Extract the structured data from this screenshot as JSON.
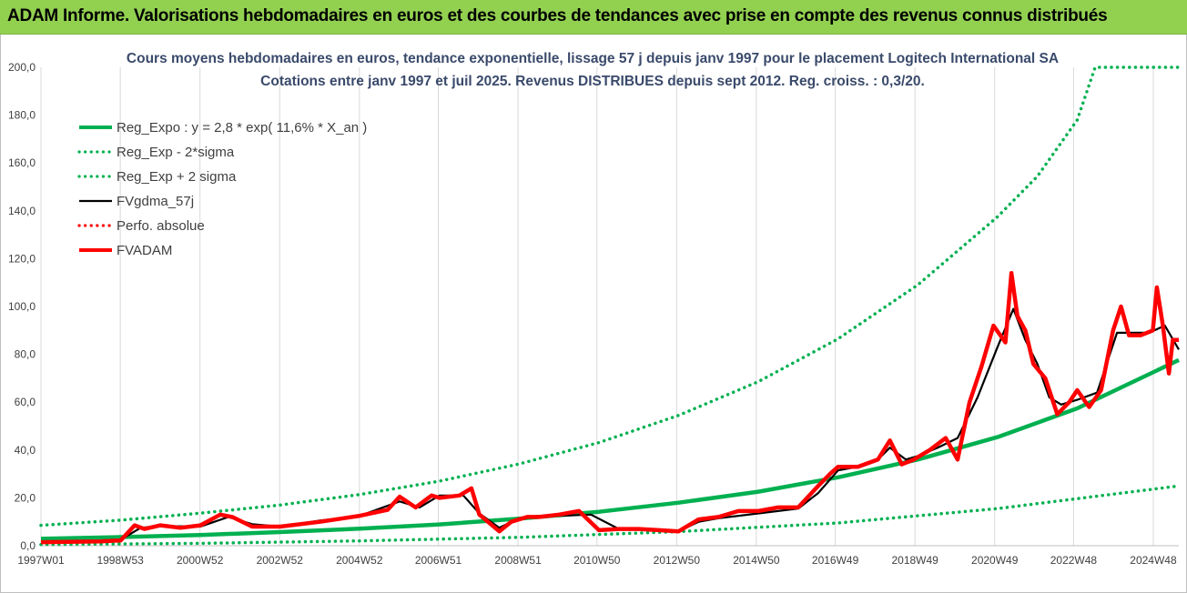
{
  "header": {
    "banner": "ADAM Informe. Valorisations hebdomadaires en euros et des courbes de tendances avec prise en compte des revenus connus distribués"
  },
  "colors": {
    "banner_bg": "#92d050",
    "reg_expo": "#00b050",
    "fvgdma": "#000000",
    "fvadam": "#ff0000",
    "perfo": "#ff0000",
    "title": "#3a4a6b"
  },
  "chart_data": {
    "type": "line",
    "title": "Cours moyens hebdomadaires en euros, tendance exponentielle, lissage 57 j depuis janv 1997  pour le placement Logitech International SA",
    "subtitle": "Cotations entre janv 1997 et juil 2025. Revenus DISTRIBUES depuis sept 2012. Reg. croiss. : 0,3/20.",
    "xlabel": "",
    "ylabel": "",
    "xlim": [
      1997.0,
      2025.55
    ],
    "ylim": [
      0,
      200
    ],
    "yticks": [
      "0,0",
      "20,0",
      "40,0",
      "60,0",
      "80,0",
      "100,0",
      "120,0",
      "140,0",
      "160,0",
      "180,0",
      "200,0"
    ],
    "xticks": [
      {
        "label": "1997W01",
        "x": 1997.0
      },
      {
        "label": "1998W53",
        "x": 1998.99
      },
      {
        "label": "2000W52",
        "x": 2000.99
      },
      {
        "label": "2002W52",
        "x": 2002.99
      },
      {
        "label": "2004W52",
        "x": 2004.99
      },
      {
        "label": "2006W51",
        "x": 2006.97
      },
      {
        "label": "2008W51",
        "x": 2008.97
      },
      {
        "label": "2010W50",
        "x": 2010.95
      },
      {
        "label": "2012W50",
        "x": 2012.95
      },
      {
        "label": "2014W50",
        "x": 2014.95
      },
      {
        "label": "2016W49",
        "x": 2016.93
      },
      {
        "label": "2018W49",
        "x": 2018.93
      },
      {
        "label": "2020W49",
        "x": 2020.93
      },
      {
        "label": "2022W48",
        "x": 2022.91
      },
      {
        "label": "2024W48",
        "x": 2024.91
      }
    ],
    "grid": "vertical",
    "legend_position": "top-left",
    "series": [
      {
        "name": "Reg_Expo : y = 2,8 * exp( 11,6% *  X_an )",
        "style": "thick",
        "color": "#00b050",
        "x": [
          1997.0,
          1999.0,
          2001.0,
          2003.0,
          2005.0,
          2007.0,
          2009.0,
          2011.0,
          2013.0,
          2015.0,
          2017.0,
          2019.0,
          2021.0,
          2023.0,
          2025.55
        ],
        "y": [
          2.9,
          3.6,
          4.5,
          5.7,
          7.1,
          8.9,
          11.3,
          14.2,
          18.0,
          22.6,
          28.6,
          36.0,
          45.4,
          57.4,
          77.6
        ]
      },
      {
        "name": "Reg_Exp - 2*sigma",
        "style": "dotted",
        "color": "#00b050",
        "x": [
          1997.0,
          2001.0,
          2005.0,
          2009.0,
          2013.0,
          2017.0,
          2021.0,
          2025.55
        ],
        "y": [
          0.5,
          1.0,
          2.0,
          3.5,
          5.9,
          9.5,
          15.5,
          25.0
        ]
      },
      {
        "name": "Reg_Exp + 2 sigma",
        "style": "dotted",
        "color": "#00b050",
        "x": [
          1997.0,
          1999.0,
          2001.0,
          2003.0,
          2005.0,
          2007.0,
          2009.0,
          2011.0,
          2013.0,
          2015.0,
          2017.0,
          2019.0,
          2021.0,
          2022.0,
          2023.0,
          2023.45,
          2025.55
        ],
        "y": [
          8.5,
          10.7,
          13.6,
          17.0,
          21.4,
          27.0,
          34.2,
          43.1,
          54.5,
          68.6,
          86.5,
          109.0,
          137.5,
          154.4,
          178.0,
          200.0,
          200.0
        ]
      },
      {
        "name": "FVgdma_57j",
        "style": "solid",
        "color": "#000000",
        "x": [
          1997.0,
          1998.5,
          1999.0,
          1999.5,
          2000.0,
          2001.0,
          2001.7,
          2002.3,
          2003.0,
          2004.0,
          2005.0,
          2006.0,
          2006.5,
          2007.0,
          2007.6,
          2008.0,
          2008.5,
          2009.0,
          2009.5,
          2010.0,
          2010.8,
          2011.5,
          2012.0,
          2012.5,
          2013.0,
          2013.5,
          2014.0,
          2015.0,
          2016.0,
          2016.5,
          2017.0,
          2017.5,
          2018.0,
          2018.3,
          2018.7,
          2019.0,
          2019.5,
          2020.0,
          2020.5,
          2021.0,
          2021.4,
          2021.7,
          2022.0,
          2022.3,
          2022.6,
          2023.0,
          2023.5,
          2024.0,
          2024.5,
          2024.8,
          2025.2,
          2025.55
        ],
        "y": [
          1.5,
          1.8,
          2.5,
          7.5,
          8.2,
          8.0,
          12.0,
          9.0,
          8.0,
          10.5,
          12.5,
          18.5,
          16.0,
          21.0,
          21.0,
          13.5,
          7.5,
          11.5,
          12.5,
          12.5,
          13.0,
          7.0,
          7.0,
          6.5,
          6.0,
          10.0,
          11.5,
          13.5,
          15.5,
          22.0,
          31.5,
          33.0,
          36.0,
          41.0,
          36.0,
          37.5,
          41.0,
          45.0,
          62.0,
          83.0,
          99.0,
          86.0,
          76.0,
          62.0,
          59.0,
          61.0,
          64.0,
          89.0,
          89.0,
          89.0,
          92.0,
          82.0
        ]
      },
      {
        "name": "Perfo. absolue",
        "style": "dotted",
        "color": "#ff0000",
        "x": [],
        "y": []
      },
      {
        "name": "FVADAM",
        "style": "thick",
        "color": "#ff0000",
        "x": [
          1997.0,
          1998.5,
          1999.0,
          1999.35,
          1999.6,
          2000.0,
          2000.5,
          2001.0,
          2001.5,
          2001.8,
          2002.3,
          2003.0,
          2004.0,
          2005.0,
          2005.7,
          2006.0,
          2006.4,
          2006.8,
          2007.0,
          2007.5,
          2007.8,
          2008.0,
          2008.5,
          2008.8,
          2009.2,
          2009.5,
          2010.0,
          2010.5,
          2011.0,
          2011.5,
          2012.0,
          2012.5,
          2013.0,
          2013.5,
          2014.0,
          2014.5,
          2015.0,
          2015.5,
          2016.0,
          2016.5,
          2016.8,
          2017.0,
          2017.5,
          2018.0,
          2018.3,
          2018.6,
          2018.9,
          2019.3,
          2019.7,
          2020.0,
          2020.3,
          2020.6,
          2020.9,
          2021.2,
          2021.35,
          2021.5,
          2021.7,
          2021.9,
          2022.2,
          2022.5,
          2022.8,
          2023.0,
          2023.3,
          2023.6,
          2023.9,
          2024.1,
          2024.3,
          2024.6,
          2024.9,
          2025.0,
          2025.15,
          2025.3,
          2025.4,
          2025.55
        ],
        "y": [
          1.5,
          1.8,
          2.2,
          8.5,
          7.0,
          8.5,
          7.5,
          8.5,
          13.0,
          12.0,
          8.0,
          8.0,
          10.0,
          12.5,
          15.0,
          20.5,
          16.0,
          21.0,
          20.0,
          21.0,
          24.0,
          13.0,
          6.0,
          10.0,
          12.0,
          12.0,
          13.0,
          14.5,
          6.5,
          7.0,
          7.0,
          6.5,
          6.0,
          11.0,
          12.0,
          14.5,
          14.5,
          16.0,
          16.0,
          25.0,
          30.0,
          33.0,
          33.0,
          36.0,
          44.0,
          34.0,
          36.0,
          40.0,
          45.0,
          36.0,
          60.0,
          75.0,
          92.0,
          85.0,
          114.0,
          96.0,
          90.0,
          76.0,
          70.0,
          55.0,
          60.0,
          65.0,
          58.0,
          65.0,
          90.0,
          100.0,
          88.0,
          88.0,
          90.0,
          108.0,
          92.0,
          72.0,
          86.0,
          86.0
        ]
      }
    ]
  }
}
